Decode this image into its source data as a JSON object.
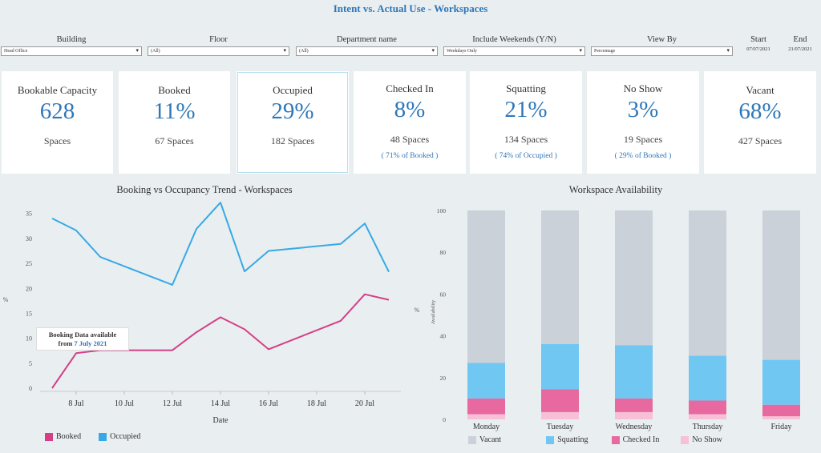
{
  "title": "Intent vs. Actual Use - Workspaces",
  "filters": [
    {
      "label": "Building",
      "value": "Head Office"
    },
    {
      "label": "Floor",
      "value": "(All)"
    },
    {
      "label": "Department name",
      "value": "(All)"
    },
    {
      "label": "Include Weekends (Y/N)",
      "value": "Weekdays Only"
    },
    {
      "label": "View By",
      "value": "Percentage"
    }
  ],
  "dates": {
    "start_label": "Start",
    "start": "07/07/2021",
    "end_label": "End",
    "end": "21/07/2021"
  },
  "kpis": [
    {
      "title": "Bookable Capacity",
      "value": "628",
      "sub": "Spaces",
      "note": ""
    },
    {
      "title": "Booked",
      "value": "11%",
      "sub": "67 Spaces",
      "note": ""
    },
    {
      "title": "Occupied",
      "value": "29%",
      "sub": "182 Spaces",
      "note": ""
    },
    {
      "title": "Checked In",
      "value": "8%",
      "sub": "48 Spaces",
      "note": "( 71% of Booked )"
    },
    {
      "title": "Squatting",
      "value": "21%",
      "sub": "134 Spaces",
      "note": "( 74% of Occupied )"
    },
    {
      "title": "No Show",
      "value": "3%",
      "sub": "19 Spaces",
      "note": "( 29% of Booked )"
    },
    {
      "title": "Vacant",
      "value": "68%",
      "sub": "427 Spaces",
      "note": ""
    }
  ],
  "annotation": {
    "line1": "Booking Data available",
    "line2_prefix": "from ",
    "line2_date": "7 July 2021"
  },
  "chart_data": [
    {
      "type": "line",
      "title": "Booking vs Occupancy Trend - Workspaces",
      "xlabel": "Date",
      "ylabel": "%",
      "x": [
        7,
        8,
        9,
        12,
        13,
        14,
        15,
        16,
        19,
        20,
        21
      ],
      "x_tick_labels": [
        "8 Jul",
        "10 Jul",
        "12 Jul",
        "14 Jul",
        "16 Jul",
        "18 Jul",
        "20 Jul"
      ],
      "x_tick_values": [
        8,
        10,
        12,
        14,
        16,
        18,
        20
      ],
      "xlim": [
        6.5,
        21.5
      ],
      "ylim": [
        0,
        38
      ],
      "y_ticks": [
        0,
        5,
        10,
        15,
        20,
        25,
        30,
        35
      ],
      "series": [
        {
          "name": "Booked",
          "color": "#d63f86",
          "points": [
            [
              7,
              0
            ],
            [
              8,
              7
            ],
            [
              9,
              7.6
            ],
            [
              12,
              7.6
            ],
            [
              13,
              11.2
            ],
            [
              14,
              14.2
            ],
            [
              15,
              11.8
            ],
            [
              16,
              7.8
            ],
            [
              19,
              13.5
            ],
            [
              20,
              18.8
            ],
            [
              21,
              17.7
            ]
          ]
        },
        {
          "name": "Occupied",
          "color": "#37a9e5",
          "points": [
            [
              7,
              34
            ],
            [
              8,
              31.6
            ],
            [
              9,
              26.3
            ],
            [
              12,
              20.7
            ],
            [
              13,
              31.9
            ],
            [
              14,
              37.2
            ],
            [
              15,
              23.4
            ],
            [
              16,
              27.5
            ],
            [
              19,
              28.9
            ],
            [
              20,
              33
            ],
            [
              21,
              23.3
            ]
          ]
        }
      ]
    },
    {
      "type": "bar",
      "stacked": true,
      "title": "Workspace Availability",
      "xlabel": "",
      "ylabel": "%",
      "y_inner_label": "Availability",
      "ylim": [
        0,
        100
      ],
      "y_ticks": [
        0,
        20,
        40,
        60,
        80,
        100
      ],
      "categories": [
        "Monday",
        "Tuesday",
        "Wednesday",
        "Thursday",
        "Friday"
      ],
      "series": [
        {
          "name": "No Show",
          "color": "#f7c0d6",
          "values": [
            2.5,
            3.5,
            3.5,
            2.5,
            1.5
          ]
        },
        {
          "name": "Checked In",
          "color": "#e8699f",
          "values": [
            7.5,
            11,
            6.5,
            6.5,
            5.5
          ]
        },
        {
          "name": "Squatting",
          "color": "#6fc7f2",
          "values": [
            17,
            21.5,
            25.5,
            21.5,
            21.5
          ]
        },
        {
          "name": "Vacant",
          "color": "#cbd1d9",
          "values": [
            73,
            64,
            64.5,
            69.5,
            71.5
          ]
        }
      ],
      "legend_order": [
        "Vacant",
        "Squatting",
        "Checked In",
        "No Show"
      ]
    }
  ]
}
